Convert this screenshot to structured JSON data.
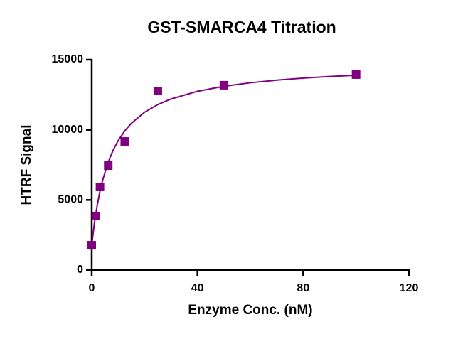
{
  "chart_data": {
    "type": "scatter",
    "title": "GST-SMARCA4 Titration",
    "x_label": "Enzyme Conc. (nM)",
    "y_label": "HTRF Signal",
    "series": [
      {
        "mode": "markers",
        "marker": "square",
        "color": "#800080",
        "x": [
          0,
          1.5625,
          3.125,
          6.25,
          12.5,
          25,
          50,
          100
        ],
        "values": [
          1770,
          3850,
          5930,
          7450,
          9170,
          12770,
          13180,
          13940
        ]
      },
      {
        "mode": "line",
        "color": "#800080",
        "x": [
          0,
          1,
          2,
          3,
          4,
          6,
          8,
          10,
          12.5,
          15,
          20,
          25,
          30,
          40,
          50,
          60,
          70,
          80,
          90,
          100
        ],
        "values": [
          1800,
          3329,
          4537,
          5514,
          6322,
          7578,
          8510,
          9229,
          9925,
          10467,
          11255,
          11800,
          12200,
          12747,
          13104,
          13356,
          13542,
          13686,
          13800,
          13893
        ]
      }
    ],
    "xlim": [
      0,
      120
    ],
    "xticks": [
      0,
      40,
      80,
      120
    ],
    "ylim": [
      0,
      15000
    ],
    "yticks": [
      0,
      5000,
      10000,
      15000
    ],
    "grid": false
  }
}
